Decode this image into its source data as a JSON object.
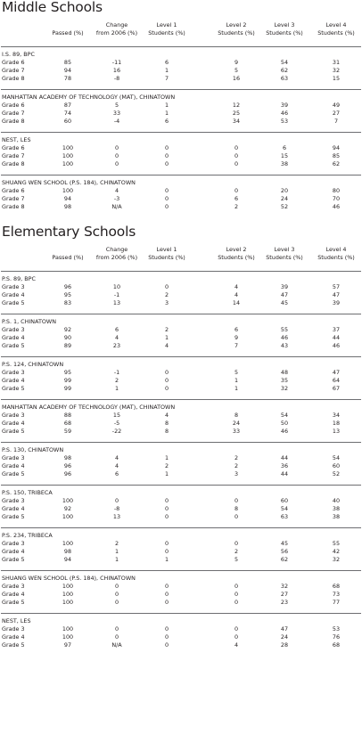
{
  "sections": [
    {
      "title": "Middle Schools",
      "headers": [
        "Passed (%)",
        "Change from 2006 (%)",
        "Level 1 Students (%)",
        "Level 2 Students (%)",
        "Level 3 Students (%)",
        "Level 4 Students (%)"
      ],
      "schools": [
        {
          "name": "I.S. 89, BPC",
          "rows": [
            [
              "Grade 6",
              "85",
              "-11",
              "6",
              "9",
              "54",
              "31"
            ],
            [
              "Grade 7",
              "94",
              "16",
              "1",
              "5",
              "62",
              "32"
            ],
            [
              "Grade 8",
              "78",
              "-8",
              "7",
              "16",
              "63",
              "15"
            ]
          ]
        },
        {
          "name": "MANHATTAN ACADEMY OF TECHNOLOGY (MAT), CHINATOWN",
          "rows": [
            [
              "Grade 6",
              "87",
              "5",
              "1",
              "12",
              "39",
              "49"
            ],
            [
              "Grade 7",
              "74",
              "33",
              "1",
              "25",
              "46",
              "27"
            ],
            [
              "Grade 8",
              "60",
              "-4",
              "6",
              "34",
              "53",
              "7"
            ]
          ]
        },
        {
          "name": "NEST, LES",
          "rows": [
            [
              "Grade 6",
              "100",
              "0",
              "0",
              "0",
              "6",
              "94"
            ],
            [
              "Grade 7",
              "100",
              "0",
              "0",
              "0",
              "15",
              "85"
            ],
            [
              "Grade 8",
              "100",
              "0",
              "0",
              "0",
              "38",
              "62"
            ]
          ]
        },
        {
          "name": "SHUANG WEN SCHOOL (P.S. 184), CHINATOWN",
          "rows": [
            [
              "Grade 6",
              "100",
              "4",
              "0",
              "0",
              "20",
              "80"
            ],
            [
              "Grade 7",
              "94",
              "-3",
              "0",
              "6",
              "24",
              "70"
            ],
            [
              "Grade 8",
              "98",
              "N/A",
              "0",
              "2",
              "52",
              "46"
            ]
          ]
        }
      ]
    },
    {
      "title": "Elementary Schools",
      "headers": [
        "Passed (%)",
        "Change from 2006 (%)",
        "Level 1 Students (%)",
        "Level 2 Students (%)",
        "Level 3 Students (%)",
        "Level 4 Students (%)"
      ],
      "schools": [
        {
          "name": "P.S. 89, BPC",
          "rows": [
            [
              "Grade 3",
              "96",
              "10",
              "0",
              "4",
              "39",
              "57"
            ],
            [
              "Grade 4",
              "95",
              "-1",
              "2",
              "4",
              "47",
              "47"
            ],
            [
              "Grade 5",
              "83",
              "13",
              "3",
              "14",
              "45",
              "39"
            ]
          ]
        },
        {
          "name": "P.S. 1, CHINATOWN",
          "rows": [
            [
              "Grade 3",
              "92",
              "6",
              "2",
              "6",
              "55",
              "37"
            ],
            [
              "Grade 4",
              "90",
              "4",
              "1",
              "9",
              "46",
              "44"
            ],
            [
              "Grade 5",
              "89",
              "23",
              "4",
              "7",
              "43",
              "46"
            ]
          ]
        },
        {
          "name": "P.S. 124, CHINATOWN",
          "rows": [
            [
              "Grade 3",
              "95",
              "-1",
              "0",
              "5",
              "48",
              "47"
            ],
            [
              "Grade 4",
              "99",
              "2",
              "0",
              "1",
              "35",
              "64"
            ],
            [
              "Grade 5",
              "99",
              "1",
              "0",
              "1",
              "32",
              "67"
            ]
          ]
        },
        {
          "name": "MANHATTAN ACADEMY OF TECHNOLOGY (MAT), CHINATOWN",
          "rows": [
            [
              "Grade 3",
              "88",
              "15",
              "4",
              "8",
              "54",
              "34"
            ],
            [
              "Grade 4",
              "68",
              "-5",
              "8",
              "24",
              "50",
              "18"
            ],
            [
              "Grade 5",
              "59",
              "-22",
              "8",
              "33",
              "46",
              "13"
            ]
          ]
        },
        {
          "name": "P.S. 130, CHINATOWN",
          "rows": [
            [
              "Grade 3",
              "98",
              "4",
              "1",
              "2",
              "44",
              "54"
            ],
            [
              "Grade 4",
              "96",
              "4",
              "2",
              "2",
              "36",
              "60"
            ],
            [
              "Grade 5",
              "96",
              "6",
              "1",
              "3",
              "44",
              "52"
            ]
          ]
        },
        {
          "name": "P.S. 150, TRIBECA",
          "rows": [
            [
              "Grade 3",
              "100",
              "0",
              "0",
              "0",
              "60",
              "40"
            ],
            [
              "Grade 4",
              "92",
              "-8",
              "0",
              "8",
              "54",
              "38"
            ],
            [
              "Grade 5",
              "100",
              "13",
              "0",
              "0",
              "63",
              "38"
            ]
          ]
        },
        {
          "name": "P.S. 234, TRIBECA",
          "rows": [
            [
              "Grade 3",
              "100",
              "2",
              "0",
              "0",
              "45",
              "55"
            ],
            [
              "Grade 4",
              "98",
              "1",
              "0",
              "2",
              "56",
              "42"
            ],
            [
              "Grade 5",
              "94",
              "1",
              "1",
              "5",
              "62",
              "32"
            ]
          ]
        },
        {
          "name": "SHUANG WEN SCHOOL (P.S. 184), CHINATOWN",
          "rows": [
            [
              "Grade 3",
              "100",
              "0",
              "0",
              "0",
              "32",
              "68"
            ],
            [
              "Grade 4",
              "100",
              "0",
              "0",
              "0",
              "27",
              "73"
            ],
            [
              "Grade 5",
              "100",
              "0",
              "0",
              "0",
              "23",
              "77"
            ]
          ]
        },
        {
          "name": "NEST, LES",
          "rows": [
            [
              "Grade 3",
              "100",
              "0",
              "0",
              "0",
              "47",
              "53"
            ],
            [
              "Grade 4",
              "100",
              "0",
              "0",
              "0",
              "24",
              "76"
            ],
            [
              "Grade 5",
              "97",
              "N/A",
              "0",
              "4",
              "28",
              "68"
            ]
          ]
        }
      ]
    }
  ]
}
